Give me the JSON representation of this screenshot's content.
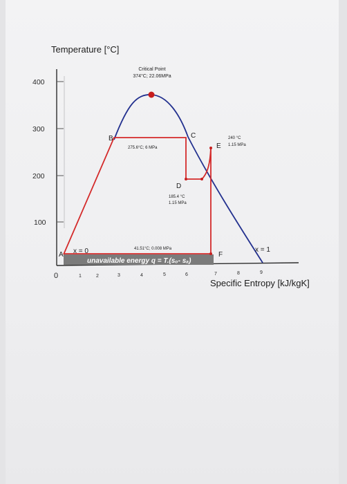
{
  "axes": {
    "y_label": "Temperature [°C]",
    "x_label": "Specific Entropy [kJ/kgK]",
    "y_ticks": [
      {
        "v": 100,
        "t": "100"
      },
      {
        "v": 200,
        "t": "200"
      },
      {
        "v": 300,
        "t": "300"
      },
      {
        "v": 400,
        "t": "400"
      }
    ],
    "x_ticks": [
      {
        "v": 0,
        "t": "0"
      },
      {
        "v": 1,
        "t": "1"
      },
      {
        "v": 2,
        "t": "2"
      },
      {
        "v": 3,
        "t": "3"
      },
      {
        "v": 4,
        "t": "4"
      },
      {
        "v": 5,
        "t": "5"
      },
      {
        "v": 6,
        "t": "6"
      },
      {
        "v": 7,
        "t": "7"
      },
      {
        "v": 8,
        "t": "8"
      },
      {
        "v": 9,
        "t": "9"
      }
    ]
  },
  "critical_point": {
    "label": "Critical Point",
    "value": "374°C; 22.06MPa"
  },
  "points": {
    "A": "A",
    "B": "B",
    "C": "C",
    "D": "D",
    "E": "E",
    "F": "F"
  },
  "annotations": {
    "bc": "275.6°C; 6 MPa",
    "e_temp": "240 °C",
    "e_pres": "1.15 MPa",
    "d_temp": "185.4 °C",
    "d_pres": "1.15 MPa",
    "af": "41.51°C; 0.008 MPa",
    "x0": "x = 0",
    "x1": "x = 1",
    "unavailable": "unavailable energy q = T.(sₒ- sₐ)"
  },
  "colors": {
    "dome": "#23318f",
    "cycle": "#d42a2a",
    "band": "#7b7b7b",
    "text": "#1c1c1c"
  }
}
